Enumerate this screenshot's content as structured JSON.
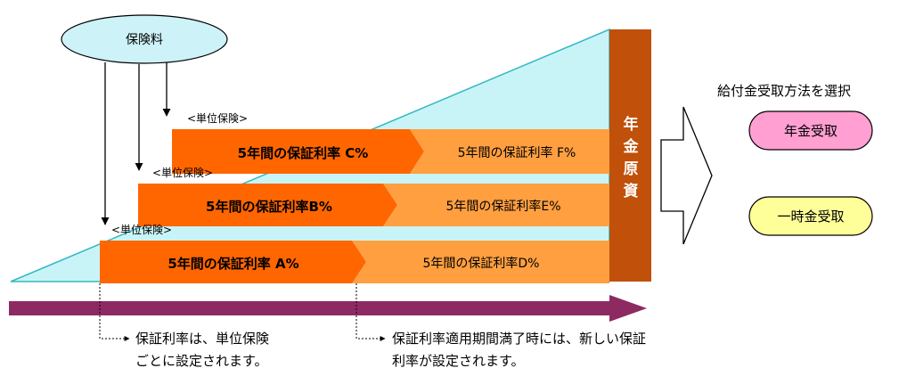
{
  "premium": {
    "label": "保険料"
  },
  "bands": [
    {
      "unit_label": "<単位保険>",
      "first": "5年間の保証利率 C%",
      "second": "5年間の保証利率 F%"
    },
    {
      "unit_label": "<単位保険>",
      "first": "5年間の保証利率B%",
      "second": "5年間の保証利率E%"
    },
    {
      "unit_label": "<単位保険>",
      "first": "5年間の保証利率 A%",
      "second": "5年間の保証利率D%"
    }
  ],
  "pillar": {
    "chars": [
      "年",
      "金",
      "原",
      "資"
    ]
  },
  "selection": {
    "title": "給付金受取方法を選択",
    "option_annuity": "年金受取",
    "option_lump": "一時金受取"
  },
  "notes": {
    "note1_line1": "保証利率は、単位保険",
    "note1_line2": "ごとに設定されます。",
    "note2_line1": "保証利率適用期間満了時には、新しい保証",
    "note2_line2": "利率が設定されます。"
  },
  "colors": {
    "triangle_fill": "#c9f4f7",
    "triangle_stroke": "#33b8c4",
    "band_dark": "#ff6600",
    "band_light": "#ff9f40",
    "pillar": "#c0500a",
    "premium_fill": "#cdf2f7",
    "annuity_fill": "#ff9fd2",
    "lump_fill": "#ffff99",
    "timeline": "#8e2a62"
  }
}
